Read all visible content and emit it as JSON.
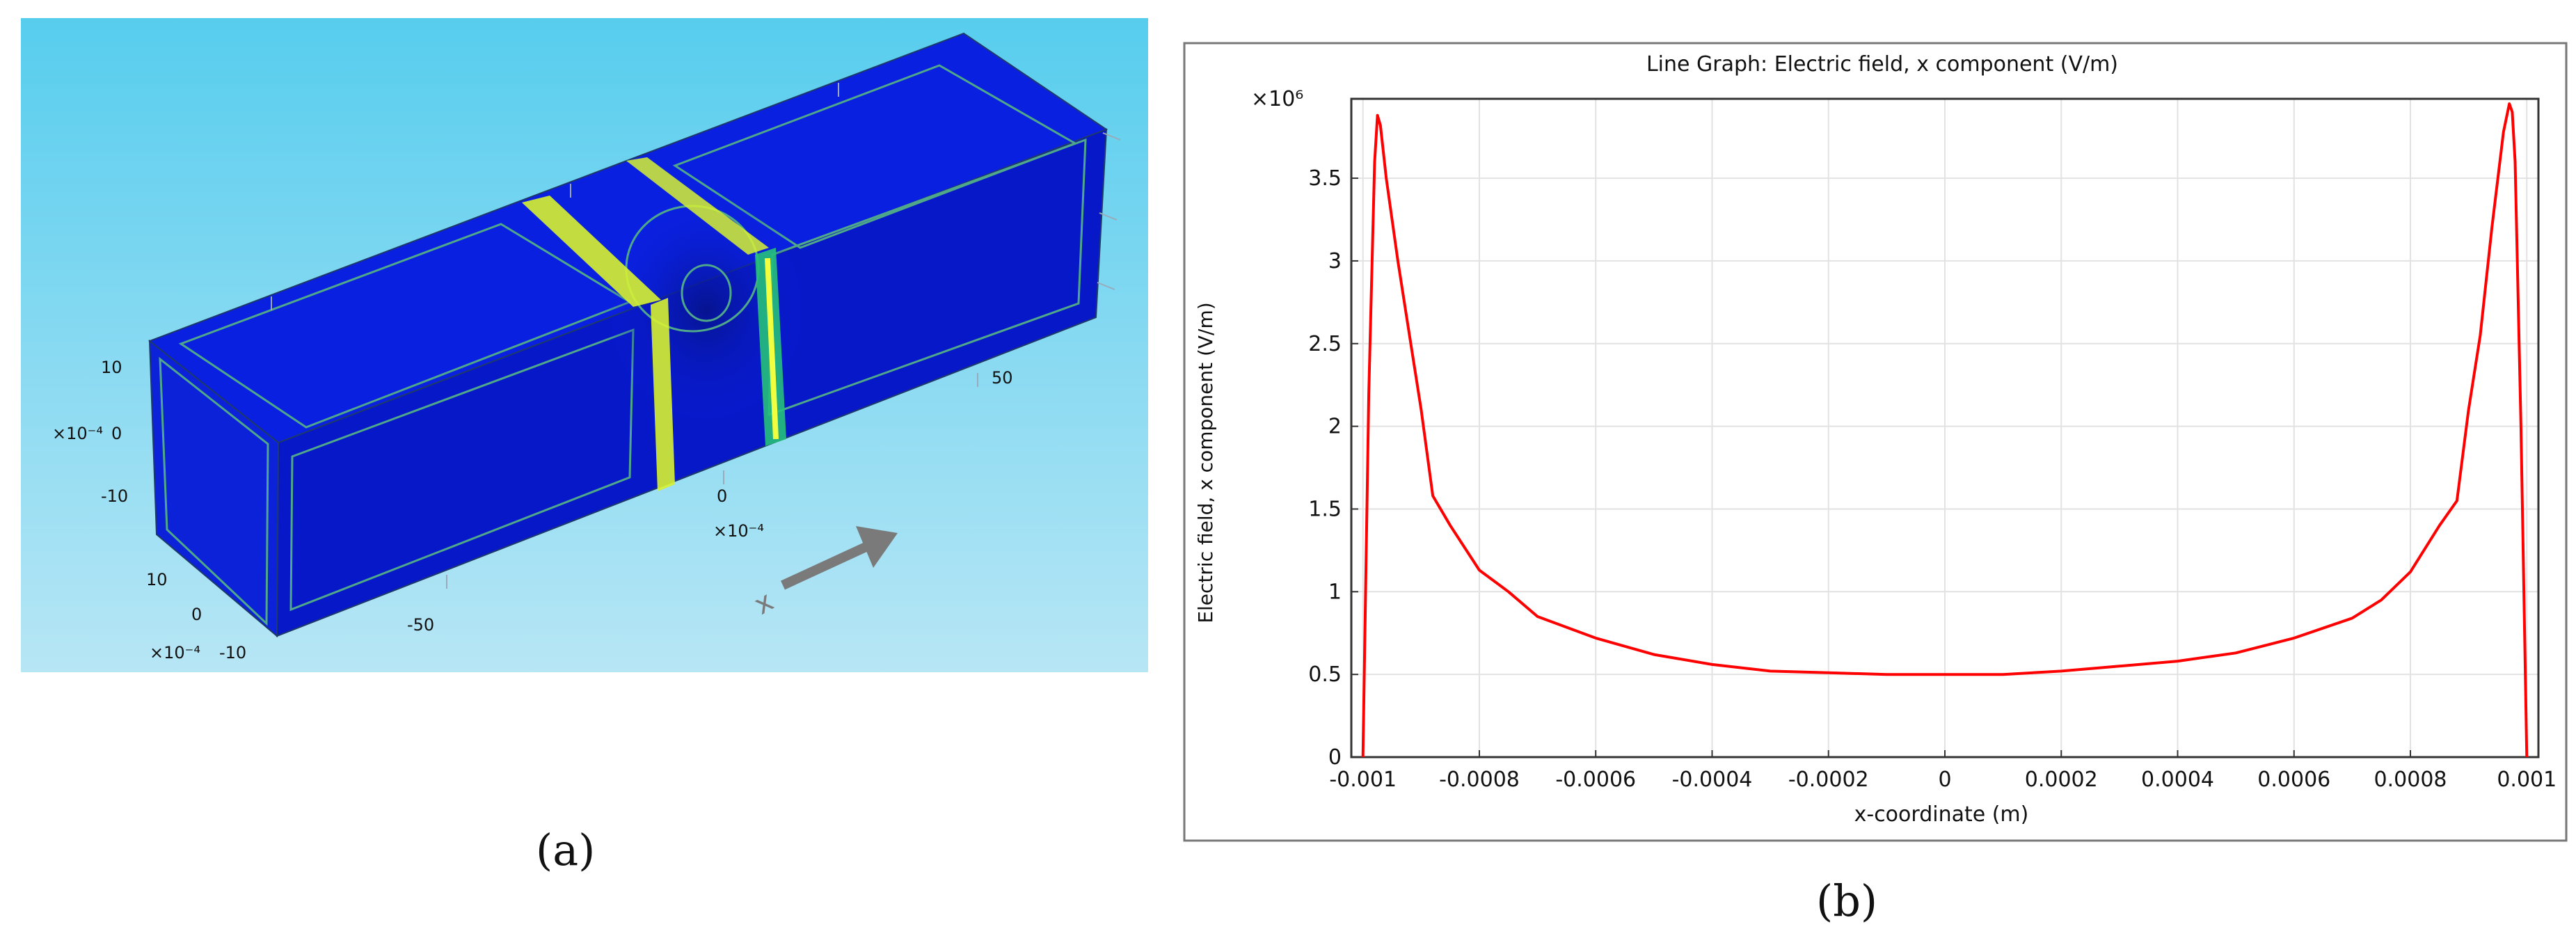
{
  "captions": {
    "a": "(a)",
    "b": "(b)"
  },
  "panel_a": {
    "axis_labels": {
      "left_top": "10",
      "left_mid": "0",
      "left_bot": "-10",
      "left_exp": "×10⁻⁴",
      "front_top": "10",
      "front_mid": "0",
      "front_bot": "-10",
      "front_exp": "×10⁻⁴",
      "x_neg50": "-50",
      "x_0": "0",
      "x_exp": "×10⁻⁴",
      "x_50": "50",
      "arrow_label": "x"
    },
    "colors": {
      "background_top": "#57cdee",
      "background_bottom": "#b7e6f5",
      "field": "#0a20e0",
      "field_dark": "#061490",
      "contour": "#4fa88a",
      "highlight": "#d7f230",
      "accent": "#26c07a",
      "arrow": "#7a7a7a"
    }
  },
  "chart_data": {
    "type": "line",
    "title": "Line Graph: Electric field, x component (V/m)",
    "xlabel": "x-coordinate (m)",
    "ylabel": "Electric field, x component (V/m)",
    "y_scale_label": "×10⁶",
    "xlim": [
      -0.00102,
      0.00102
    ],
    "ylim": [
      0,
      3.98
    ],
    "grid": true,
    "x_ticks": [
      -0.001,
      -0.0008,
      -0.0006,
      -0.0004,
      -0.0002,
      0,
      0.0002,
      0.0004,
      0.0006,
      0.0008,
      0.001
    ],
    "x_tick_labels": [
      "-0.001",
      "-0.0008",
      "-0.0006",
      "-0.0004",
      "-0.0002",
      "0",
      "0.0002",
      "0.0004",
      "0.0006",
      "0.0008",
      "0.001"
    ],
    "y_ticks": [
      0,
      0.5,
      1,
      1.5,
      2,
      2.5,
      3,
      3.5
    ],
    "y_tick_labels": [
      "0",
      "0.5",
      "1",
      "1.5",
      "2",
      "2.5",
      "3",
      "3.5"
    ],
    "series": [
      {
        "color": "#ff0000",
        "x": [
          -0.001,
          -0.00099,
          -0.00098,
          -0.000975,
          -0.00097,
          -0.00096,
          -0.00094,
          -0.00092,
          -0.0009,
          -0.00088,
          -0.00085,
          -0.0008,
          -0.00075,
          -0.0007,
          -0.0006,
          -0.0005,
          -0.0004,
          -0.0003,
          -0.0002,
          -0.0001,
          0,
          0.0001,
          0.0002,
          0.0003,
          0.0004,
          0.0005,
          0.0006,
          0.0007,
          0.00075,
          0.0008,
          0.00085,
          0.00088,
          0.0009,
          0.00092,
          0.00094,
          0.00096,
          0.00097,
          0.000975,
          0.00098,
          0.00099,
          0.001
        ],
        "y": [
          0,
          2.2,
          3.6,
          3.88,
          3.82,
          3.5,
          3.0,
          2.55,
          2.1,
          1.58,
          1.4,
          1.13,
          1.0,
          0.85,
          0.72,
          0.62,
          0.56,
          0.52,
          0.51,
          0.5,
          0.5,
          0.5,
          0.52,
          0.55,
          0.58,
          0.63,
          0.72,
          0.84,
          0.95,
          1.12,
          1.4,
          1.55,
          2.1,
          2.55,
          3.2,
          3.78,
          3.95,
          3.9,
          3.6,
          2.0,
          0
        ]
      }
    ]
  }
}
